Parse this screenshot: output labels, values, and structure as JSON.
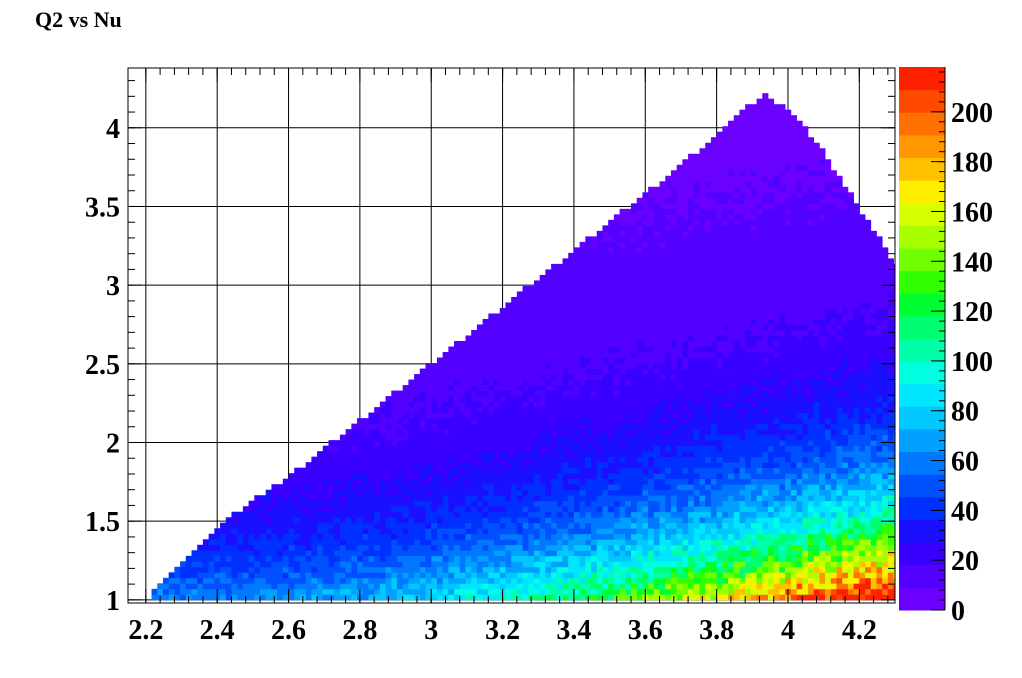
{
  "chart_data": {
    "type": "heatmap",
    "title": "Q2 vs Nu",
    "xlabel": "",
    "ylabel": "",
    "xlim": [
      2.15,
      4.3
    ],
    "ylim": [
      0.98,
      4.38
    ],
    "x_ticks": [
      "2.2",
      "2.4",
      "2.6",
      "2.8",
      "3",
      "3.2",
      "3.4",
      "3.6",
      "3.8",
      "4",
      "4.2"
    ],
    "y_ticks": [
      "1",
      "1.5",
      "2",
      "2.5",
      "3",
      "3.5",
      "4"
    ],
    "grid": true,
    "colorbar": {
      "range": [
        0,
        218
      ],
      "ticks": [
        "0",
        "20",
        "40",
        "60",
        "80",
        "100",
        "120",
        "140",
        "160",
        "180",
        "200"
      ],
      "colors": [
        "#6a00ff",
        "#5200ff",
        "#3a00ff",
        "#1a10ff",
        "#0030ff",
        "#0050ff",
        "#0078ff",
        "#00a0ff",
        "#00c8ff",
        "#00e6ff",
        "#00ffe0",
        "#00ffa8",
        "#00ff70",
        "#00ff30",
        "#30ff00",
        "#70ff00",
        "#a8ff00",
        "#d8ff00",
        "#ffee00",
        "#ffc000",
        "#ff9800",
        "#ff7000",
        "#ff4800",
        "#ff2000"
      ]
    },
    "region": {
      "lower_edge_q2": 1.0,
      "upper_edge_points": [
        [
          2.2,
          1.0
        ],
        [
          2.4,
          1.47
        ],
        [
          2.6,
          1.78
        ],
        [
          2.8,
          2.14
        ],
        [
          3.0,
          2.5
        ],
        [
          3.2,
          2.86
        ],
        [
          3.4,
          3.22
        ],
        [
          3.6,
          3.58
        ],
        [
          3.8,
          3.95
        ],
        [
          3.92,
          4.2
        ],
        [
          4.0,
          4.35
        ]
      ],
      "right_edge_points": [
        [
          3.92,
          4.2
        ],
        [
          4.0,
          4.1
        ],
        [
          4.1,
          3.8
        ],
        [
          4.2,
          3.45
        ],
        [
          4.3,
          3.1
        ]
      ]
    },
    "intensity_summary": [
      {
        "nu": 2.2,
        "q2": 1.0,
        "counts": 60
      },
      {
        "nu": 3.0,
        "q2": 1.1,
        "counts": 80
      },
      {
        "nu": 3.8,
        "q2": 1.1,
        "counts": 120
      },
      {
        "nu": 4.2,
        "q2": 1.05,
        "counts": 200
      },
      {
        "nu": 4.2,
        "q2": 1.5,
        "counts": 120
      },
      {
        "nu": 3.5,
        "q2": 2.0,
        "counts": 30
      },
      {
        "nu": 3.5,
        "q2": 3.0,
        "counts": 10
      }
    ]
  }
}
